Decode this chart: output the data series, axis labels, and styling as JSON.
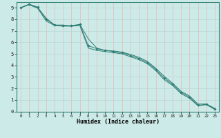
{
  "xlabel": "Humidex (Indice chaleur)",
  "background_color": "#cceae7",
  "grid_color_h": "#b8d8d5",
  "grid_color_v": "#e8b8b8",
  "line_color": "#2d7d74",
  "x_data": [
    0,
    1,
    2,
    3,
    4,
    5,
    6,
    7,
    8,
    9,
    10,
    11,
    12,
    13,
    14,
    15,
    16,
    17,
    18,
    19,
    20,
    21,
    22,
    23
  ],
  "line1": [
    9.0,
    9.3,
    9.0,
    8.1,
    7.5,
    7.5,
    7.4,
    7.55,
    6.3,
    5.5,
    5.3,
    5.25,
    5.15,
    4.95,
    4.7,
    4.35,
    3.75,
    3.05,
    2.45,
    1.75,
    1.35,
    0.65,
    0.65,
    0.28
  ],
  "line2": [
    9.0,
    9.3,
    9.05,
    8.0,
    7.5,
    7.45,
    7.45,
    7.55,
    5.7,
    5.45,
    5.3,
    5.2,
    5.1,
    4.85,
    4.6,
    4.25,
    3.65,
    2.9,
    2.35,
    1.65,
    1.25,
    0.55,
    0.62,
    0.22
  ],
  "line3": [
    9.0,
    9.25,
    8.95,
    7.85,
    7.45,
    7.4,
    7.4,
    7.45,
    5.5,
    5.3,
    5.2,
    5.1,
    5.0,
    4.75,
    4.5,
    4.15,
    3.55,
    2.75,
    2.25,
    1.55,
    1.15,
    0.5,
    0.6,
    0.18
  ],
  "ylim": [
    0,
    9.5
  ],
  "xlim": [
    -0.5,
    23.5
  ],
  "yticks": [
    0,
    1,
    2,
    3,
    4,
    5,
    6,
    7,
    8,
    9
  ],
  "xticks": [
    0,
    1,
    2,
    3,
    4,
    5,
    6,
    7,
    8,
    9,
    10,
    11,
    12,
    13,
    14,
    15,
    16,
    17,
    18,
    19,
    20,
    21,
    22,
    23
  ]
}
